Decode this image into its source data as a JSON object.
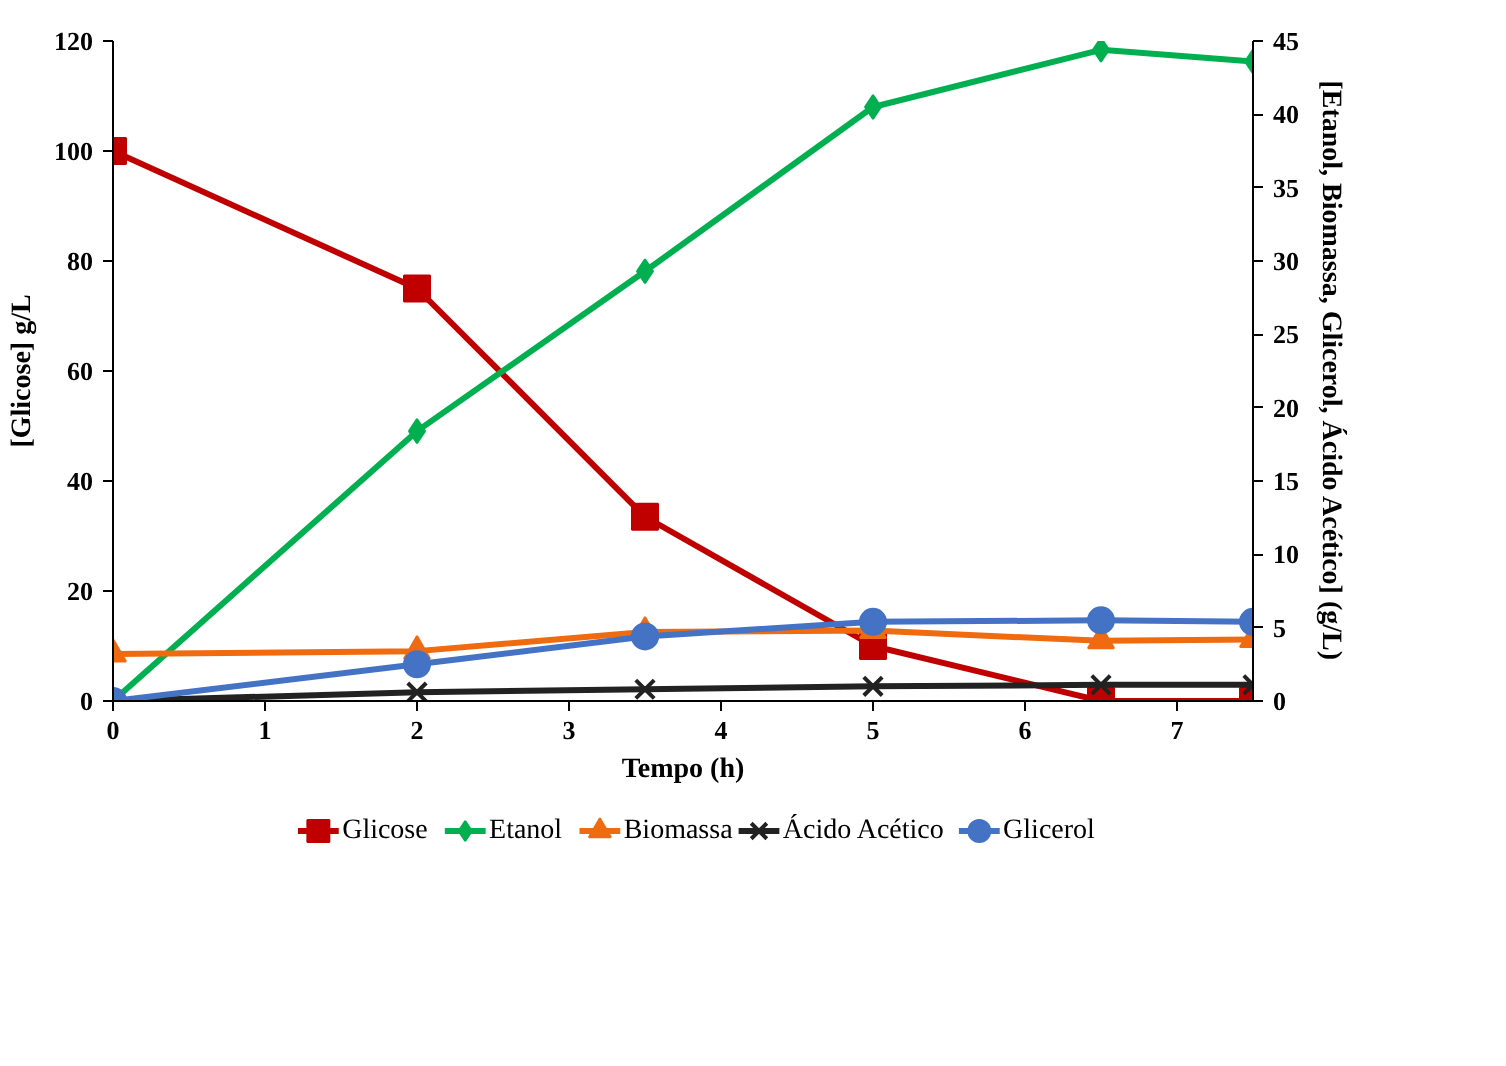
{
  "chart_data": {
    "type": "line",
    "xlabel": "Tempo (h)",
    "ylabel": "[Glicose] g/L",
    "y2label": "[Etanol, Biomassa, Glicerol, Ácido Acético] (g/L)",
    "x": [
      0,
      2,
      3.5,
      5,
      6.5,
      7.5
    ],
    "xlim": [
      0,
      7.5
    ],
    "xticks": [
      0,
      1,
      2,
      3,
      4,
      5,
      6,
      7
    ],
    "ylim": [
      0,
      120
    ],
    "yticks": [
      0,
      20,
      40,
      60,
      80,
      100,
      120
    ],
    "y2lim": [
      0,
      45
    ],
    "y2ticks": [
      0,
      5,
      10,
      15,
      20,
      25,
      30,
      35,
      40,
      45
    ],
    "grid": false,
    "legend": "bottom",
    "line_style": "solid",
    "series": [
      {
        "name": "Glicose",
        "color": "#c00000",
        "marker": "square",
        "values": [
          100,
          75,
          33.5,
          10,
          0,
          0
        ]
      },
      {
        "name": "Etanol",
        "color": "#00b050",
        "marker": "diamond",
        "axis": "y2",
        "values": [
          0,
          18.4,
          29.3,
          40.5,
          44.4,
          43.6
        ]
      },
      {
        "name": "Biomassa",
        "color": "#f06a10",
        "marker": "triangle",
        "axis": "y2",
        "values": [
          3.2,
          3.4,
          4.7,
          4.8,
          4.1,
          4.2
        ]
      },
      {
        "name": "Ácido Acético",
        "color": "#222222",
        "marker": "cross",
        "axis": "y2",
        "values": [
          0,
          0.6,
          0.8,
          1.0,
          1.1,
          1.1
        ]
      },
      {
        "name": "Glicerol",
        "color": "#4472c4",
        "marker": "circle",
        "axis": "y2",
        "values": [
          0,
          2.5,
          4.4,
          5.4,
          5.5,
          5.4
        ]
      }
    ]
  }
}
